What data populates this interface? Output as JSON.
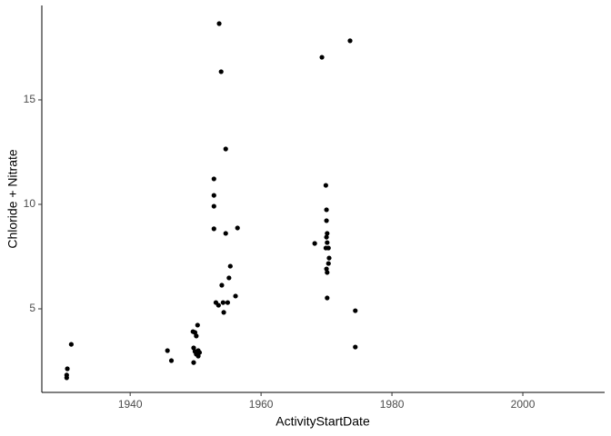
{
  "chart_data": {
    "type": "scatter",
    "x_label": "ActivityStartDate",
    "y_label": "Chloride + Nitrate",
    "color": "#000000",
    "x": [
      1953.6,
      1973.6,
      1969.3,
      1953.9,
      1954.6,
      1952.8,
      1969.9,
      1952.8,
      1952.8,
      1970.0,
      1970.0,
      1956.4,
      1952.8,
      1970.1,
      1954.6,
      1970.0,
      1970.1,
      1968.2,
      1969.9,
      1970.3,
      1970.4,
      1970.3,
      1970.0,
      1970.1,
      1955.3,
      1955.1,
      1954.0,
      1956.1,
      1970.1,
      1953.1,
      1953.5,
      1954.2,
      1954.9,
      1954.3,
      1974.4,
      1950.3,
      1949.6,
      1949.9,
      1950.1,
      1931.0,
      1945.7,
      1949.7,
      1950.4,
      1949.9,
      1950.6,
      1950.1,
      1974.4,
      1950.4,
      1946.3,
      1949.7,
      1930.4,
      1930.3,
      1930.3
    ],
    "values": [
      18.65,
      17.83,
      17.04,
      16.35,
      12.65,
      11.22,
      10.91,
      10.43,
      9.91,
      9.74,
      9.22,
      8.87,
      8.83,
      8.61,
      8.61,
      8.43,
      8.17,
      8.13,
      7.91,
      7.91,
      7.43,
      7.17,
      6.91,
      6.74,
      7.04,
      6.48,
      6.13,
      5.61,
      5.52,
      5.3,
      5.17,
      5.3,
      5.3,
      4.83,
      4.91,
      4.22,
      3.91,
      3.87,
      3.7,
      3.3,
      3.0,
      3.13,
      3.0,
      2.96,
      2.91,
      2.83,
      3.17,
      2.74,
      2.52,
      2.43,
      2.13,
      1.83,
      1.7
    ],
    "xlim": [
      1926.5,
      2012.5
    ],
    "xticks": [
      1940,
      1960,
      1980,
      2000
    ],
    "ylim": [
      1.0,
      19.52
    ],
    "yticks": [
      5,
      10,
      15
    ]
  }
}
